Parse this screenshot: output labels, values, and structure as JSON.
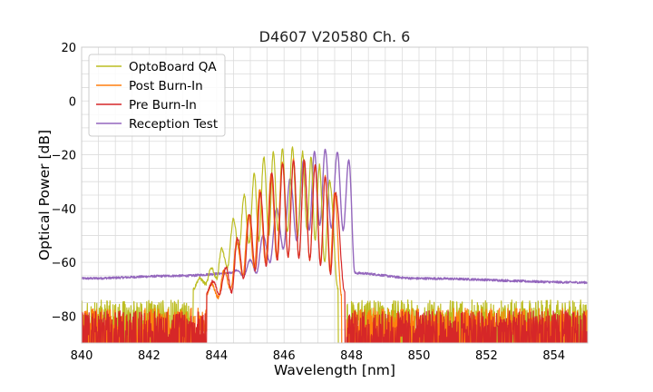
{
  "chart_data": {
    "type": "line",
    "title": "D4607 V20580 Ch. 6",
    "xlabel": "Wavelength [nm]",
    "ylabel": "Optical Power [dB]",
    "xlim": [
      840,
      855
    ],
    "ylim": [
      -90,
      20
    ],
    "xticks": [
      840,
      842,
      844,
      846,
      848,
      850,
      852,
      854
    ],
    "yticks": [
      20,
      0,
      -20,
      -40,
      -60,
      -80
    ],
    "grid": true,
    "legend": "top-left",
    "noise_floor": -90,
    "series": [
      {
        "name": "OptoBoard QA",
        "color": "#bcbd22",
        "shape": "spectrum",
        "noise_mean": -79,
        "noise_span": [
          840,
          843.3,
          847.8,
          855
        ],
        "peaks": [
          [
            843.5,
            -66
          ],
          [
            843.85,
            -62
          ],
          [
            844.15,
            -55
          ],
          [
            844.5,
            -44
          ],
          [
            844.82,
            -35
          ],
          [
            845.12,
            -27
          ],
          [
            845.4,
            -21
          ],
          [
            845.68,
            -19
          ],
          [
            845.95,
            -18
          ],
          [
            846.25,
            -17.5
          ],
          [
            846.55,
            -19
          ],
          [
            846.8,
            -21
          ],
          [
            847.05,
            -24
          ],
          [
            847.35,
            -30
          ]
        ],
        "valleys": [
          [
            843.68,
            -68
          ],
          [
            844.0,
            -66
          ],
          [
            844.32,
            -62
          ],
          [
            844.66,
            -55
          ],
          [
            844.96,
            -53
          ],
          [
            845.25,
            -52
          ],
          [
            845.55,
            -50
          ],
          [
            845.82,
            -48
          ],
          [
            846.1,
            -49
          ],
          [
            846.4,
            -50
          ],
          [
            846.68,
            -48
          ],
          [
            846.92,
            -52
          ],
          [
            847.2,
            -60
          ]
        ],
        "edges": [
          [
            843.3,
            -70
          ],
          [
            847.6,
            -70
          ]
        ]
      },
      {
        "name": "Post Burn-In",
        "color": "#ff7f0e",
        "shape": "spectrum",
        "noise_mean": -82,
        "noise_span": [
          840,
          844.7,
          847.8,
          855
        ],
        "peaks": [
          [
            843.85,
            -68
          ],
          [
            844.22,
            -63
          ],
          [
            844.6,
            -52
          ],
          [
            844.95,
            -42
          ],
          [
            845.28,
            -33
          ],
          [
            845.62,
            -27
          ],
          [
            845.95,
            -23
          ],
          [
            846.28,
            -22
          ],
          [
            846.6,
            -22
          ],
          [
            846.92,
            -24
          ],
          [
            847.22,
            -28
          ],
          [
            847.5,
            -34
          ]
        ],
        "valleys": [
          [
            844.05,
            -73
          ],
          [
            844.42,
            -70
          ],
          [
            844.78,
            -65
          ],
          [
            845.12,
            -62
          ],
          [
            845.45,
            -60
          ],
          [
            845.78,
            -58
          ],
          [
            846.12,
            -58
          ],
          [
            846.44,
            -58
          ],
          [
            846.76,
            -59
          ],
          [
            847.08,
            -60
          ],
          [
            847.36,
            -63
          ]
        ],
        "edges": [
          [
            843.7,
            -72
          ],
          [
            847.7,
            -72
          ]
        ]
      },
      {
        "name": "Pre Burn-In",
        "color": "#d62728",
        "shape": "spectrum",
        "noise_mean": -83,
        "noise_span": [
          840,
          844.0,
          847.8,
          855
        ],
        "peaks": [
          [
            843.9,
            -67
          ],
          [
            844.28,
            -62
          ],
          [
            844.62,
            -51
          ],
          [
            844.98,
            -42
          ],
          [
            845.3,
            -34
          ],
          [
            845.64,
            -27
          ],
          [
            845.96,
            -23
          ],
          [
            846.28,
            -22
          ],
          [
            846.6,
            -22
          ],
          [
            846.92,
            -24
          ],
          [
            847.22,
            -28
          ],
          [
            847.52,
            -34
          ]
        ],
        "valleys": [
          [
            844.08,
            -72
          ],
          [
            844.45,
            -71
          ],
          [
            844.8,
            -66
          ],
          [
            845.15,
            -63
          ],
          [
            845.47,
            -61
          ],
          [
            845.8,
            -59
          ],
          [
            846.12,
            -58
          ],
          [
            846.44,
            -58
          ],
          [
            846.76,
            -59
          ],
          [
            847.08,
            -61
          ],
          [
            847.38,
            -64
          ]
        ],
        "edges": [
          [
            843.7,
            -71
          ],
          [
            847.8,
            -71
          ]
        ]
      },
      {
        "name": "Reception Test",
        "color": "#9467bd",
        "shape": "spectrum-floor",
        "floor_points": [
          [
            840,
            -66
          ],
          [
            843,
            -65
          ],
          [
            844.5,
            -64
          ],
          [
            845,
            -60
          ],
          [
            847.95,
            -60
          ],
          [
            848.05,
            -64
          ],
          [
            850,
            -66
          ],
          [
            855,
            -67.5
          ]
        ],
        "peaks": [
          [
            844.6,
            -63
          ],
          [
            845.0,
            -59
          ],
          [
            845.38,
            -50
          ],
          [
            845.78,
            -40
          ],
          [
            846.18,
            -29
          ],
          [
            846.58,
            -22
          ],
          [
            846.9,
            -19
          ],
          [
            847.22,
            -18
          ],
          [
            847.58,
            -19
          ],
          [
            847.92,
            -22
          ]
        ],
        "valleys": [
          [
            844.8,
            -65
          ],
          [
            845.18,
            -64
          ],
          [
            845.58,
            -60
          ],
          [
            845.98,
            -55
          ],
          [
            846.38,
            -52
          ],
          [
            846.75,
            -48
          ],
          [
            847.06,
            -46
          ],
          [
            847.4,
            -47
          ],
          [
            847.75,
            -48
          ]
        ],
        "edges": [
          [
            844.4,
            -64
          ],
          [
            848.1,
            -64
          ]
        ]
      }
    ]
  }
}
